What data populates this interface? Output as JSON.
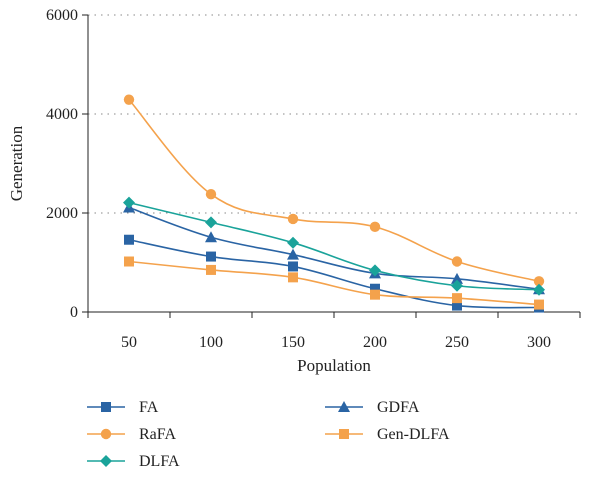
{
  "chart_data": {
    "type": "line",
    "title": "",
    "xlabel": "Population",
    "ylabel": "Generation",
    "categories": [
      "50",
      "100",
      "150",
      "200",
      "250",
      "300"
    ],
    "ylim": [
      0,
      6000
    ],
    "yticks": [
      "0",
      "2000",
      "4000",
      "6000"
    ],
    "grid": "dotted horizontal",
    "legend": "bottom",
    "series": [
      {
        "name": "FA",
        "color": "#2a64a4",
        "marker": "square",
        "values": [
          1460,
          1120,
          920,
          470,
          130,
          90
        ]
      },
      {
        "name": "GDFA",
        "color": "#2a64a4",
        "marker": "triangle",
        "values": [
          2110,
          1510,
          1160,
          780,
          670,
          460
        ]
      },
      {
        "name": "RaFA",
        "color": "#f4a24c",
        "marker": "circle",
        "values": [
          4290,
          2380,
          1880,
          1720,
          1020,
          620
        ]
      },
      {
        "name": "Gen-DLFA",
        "color": "#f4a24c",
        "marker": "square",
        "values": [
          1020,
          850,
          700,
          350,
          280,
          150
        ]
      },
      {
        "name": "DLFA",
        "color": "#1aa39a",
        "marker": "diamond",
        "values": [
          2210,
          1810,
          1400,
          840,
          530,
          450
        ]
      }
    ]
  }
}
